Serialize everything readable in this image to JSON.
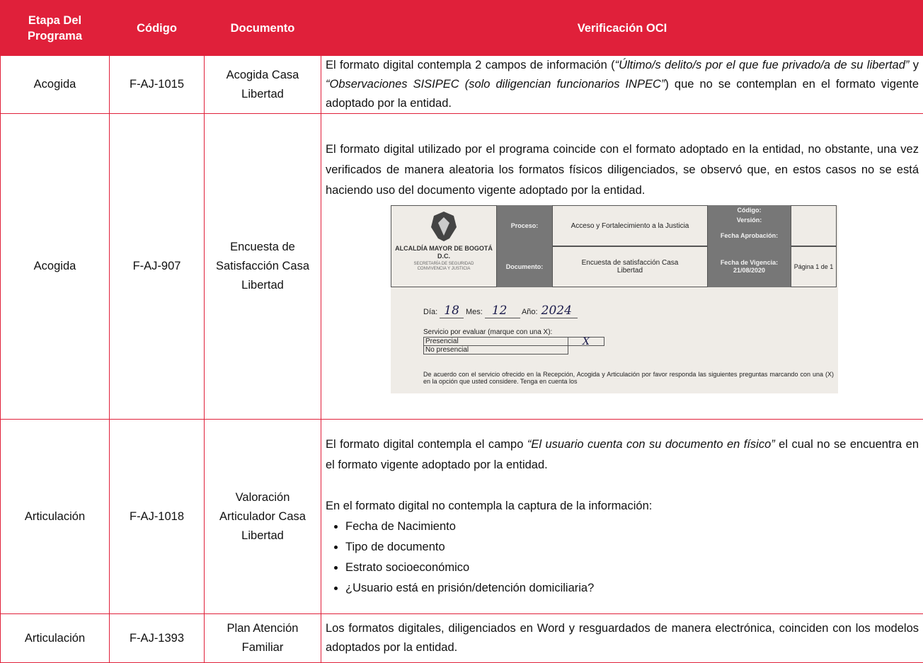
{
  "header": {
    "columns": [
      "Etapa Del Programa",
      "Código",
      "Documento",
      "Verificación OCI"
    ]
  },
  "table": {
    "rows": [
      {
        "stage": "Acogida",
        "code": "F-AJ-1015",
        "document": "Acogida Casa Libertad",
        "verification": {
          "parts": [
            "El formato digital contempla 2 campos de información (",
            "“Último/s delito/s por el que fue privado/a de su libertad”",
            " y ",
            "“Observaciones SISIPEC (solo diligencian funcionarios INPEC”",
            ") que no se contemplan en el formato vigente adoptado por la entidad."
          ]
        }
      },
      {
        "stage": "Acogida",
        "code": "F-AJ-907",
        "document": "Encuesta de Satisfacción Casa Libertad",
        "verification": {
          "text": "El formato digital utilizado por el programa coincide con el formato adoptado en la entidad, no obstante, una vez verificados de manera aleatoria los formatos físicos diligenciados, se observó que, en estos casos no se está haciendo uso del documento vigente adoptado por la entidad.",
          "form": {
            "entity": "ALCALDÍA MAYOR DE BOGOTÁ D.C.",
            "secretariat": "SECRETARÍA DE SEGURIDAD CONVIVENCIA Y JUSTICIA",
            "process_label": "Proceso:",
            "process": "Acceso y Fortalecimiento a la Justicia",
            "document_label": "Documento:",
            "document": "Encuesta de satisfacción Casa Libertad",
            "code_label": "Código:",
            "version_label": "Versión:",
            "approval_label": "Fecha Aprobación:",
            "validity": "Fecha de Vigencia: 21/08/2020",
            "page": "Página 1 de 1",
            "day_label": "Día:",
            "day": "18",
            "month_label": "Mes:",
            "month": "12",
            "year_label": "Año:",
            "year": "2024",
            "service_label": "Servicio por evaluar (marque con una X):",
            "option_1": "Presencial",
            "mark": "X",
            "option_2": "No presencial",
            "instructions": "De acuerdo con el servicio ofrecido en la Recepción, Acogida y Articulación por favor responda las siguientes preguntas marcando con una (X) en la opción que usted considere. Tenga en cuenta los"
          }
        }
      },
      {
        "stage": "Articulación",
        "code": "F-AJ-1018",
        "document": "Valoración Articulador Casa Libertad",
        "verification": {
          "parts": [
            "El formato digital contempla el campo ",
            "“El usuario cuenta con su documento en físico”",
            " el cual no se encuentra en el formato vigente adoptado por la entidad."
          ],
          "text": "En el formato digital no contempla la captura de la información:",
          "bullets": [
            "Fecha de Nacimiento",
            "Tipo de documento",
            "Estrato socioeconómico",
            "¿Usuario está en prisión/detención domiciliaria?"
          ]
        }
      },
      {
        "stage": "Articulación",
        "code": "F-AJ-1393",
        "document": "Plan Atención Familiar",
        "verification": {
          "text": "Los formatos digitales, diligenciados en Word y resguardados de manera electrónica, coinciden con los modelos adoptados por la entidad."
        }
      }
    ]
  }
}
